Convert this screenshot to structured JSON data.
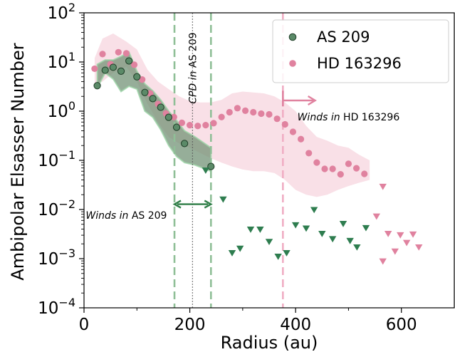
{
  "chart_data": {
    "type": "scatter",
    "xlabel": "Radius (au)",
    "ylabel": "Ambipolar Elsasser Number",
    "xlim": [
      0,
      700
    ],
    "ylim": [
      0.0001,
      100
    ],
    "yscale": "log",
    "x_ticks": [
      0,
      200,
      400,
      600
    ],
    "y_ticks": [
      {
        "value": 0.0001,
        "base": "10",
        "exp": "−4"
      },
      {
        "value": 0.001,
        "base": "10",
        "exp": "−3"
      },
      {
        "value": 0.01,
        "base": "10",
        "exp": "−2"
      },
      {
        "value": 0.1,
        "base": "10",
        "exp": "−1"
      },
      {
        "value": 1,
        "base": "10",
        "exp": "0"
      },
      {
        "value": 10,
        "base": "10",
        "exp": "1"
      },
      {
        "value": 100,
        "base": "10",
        "exp": "2"
      }
    ],
    "legend_position": "top-right",
    "series": [
      {
        "name": "AS 209",
        "color": "#5b8a68",
        "edge_color": "#1f3d27",
        "points": [
          [
            25,
            3.3
          ],
          [
            40,
            6.8
          ],
          [
            55,
            7.8
          ],
          [
            70,
            6.5
          ],
          [
            85,
            10.5
          ],
          [
            100,
            5.0
          ],
          [
            115,
            2.4
          ],
          [
            130,
            1.8
          ],
          [
            145,
            1.2
          ],
          [
            160,
            0.75
          ],
          [
            175,
            0.47
          ],
          [
            190,
            0.22
          ],
          [
            240,
            0.075
          ]
        ],
        "band": [
          [
            25,
            3.0,
            9.0
          ],
          [
            40,
            6.0,
            11.0
          ],
          [
            55,
            4.5,
            11.0
          ],
          [
            70,
            2.5,
            13.0
          ],
          [
            85,
            3.2,
            16.0
          ],
          [
            100,
            2.8,
            6.5
          ],
          [
            115,
            1.0,
            3.6
          ],
          [
            130,
            0.75,
            2.6
          ],
          [
            145,
            0.42,
            1.7
          ],
          [
            160,
            0.2,
            1.0
          ],
          [
            175,
            0.12,
            0.65
          ],
          [
            190,
            0.09,
            0.4
          ],
          [
            210,
            0.08,
            0.3
          ],
          [
            240,
            0.06,
            0.18
          ]
        ],
        "upper_limits": [
          [
            230,
            0.062
          ],
          [
            263,
            0.016
          ],
          [
            280,
            0.0013
          ],
          [
            295,
            0.0016
          ],
          [
            315,
            0.0039
          ],
          [
            333,
            0.0039
          ],
          [
            350,
            0.0022
          ],
          [
            367,
            0.0011
          ],
          [
            383,
            0.0013
          ],
          [
            400,
            0.0048
          ],
          [
            420,
            0.0041
          ],
          [
            435,
            0.0098
          ],
          [
            450,
            0.0032
          ],
          [
            470,
            0.0025
          ],
          [
            490,
            0.0051
          ],
          [
            503,
            0.0023
          ],
          [
            516,
            0.0017
          ],
          [
            533,
            0.0042
          ]
        ]
      },
      {
        "name": "HD 163296",
        "color": "#e0829f",
        "points": [
          [
            20,
            7.3
          ],
          [
            35,
            14.5
          ],
          [
            50,
            9.0
          ],
          [
            65,
            15.8
          ],
          [
            80,
            15.0
          ],
          [
            95,
            8.8
          ],
          [
            110,
            4.4
          ],
          [
            125,
            2.3
          ],
          [
            140,
            1.4
          ],
          [
            155,
            0.9
          ],
          [
            170,
            0.76
          ],
          [
            185,
            0.58
          ],
          [
            200,
            0.52
          ],
          [
            215,
            0.5
          ],
          [
            230,
            0.52
          ],
          [
            245,
            0.57
          ],
          [
            260,
            0.76
          ],
          [
            275,
            0.95
          ],
          [
            290,
            1.15
          ],
          [
            305,
            1.02
          ],
          [
            320,
            0.95
          ],
          [
            335,
            0.89
          ],
          [
            350,
            0.86
          ],
          [
            365,
            0.7
          ],
          [
            380,
            0.54
          ],
          [
            395,
            0.38
          ],
          [
            410,
            0.27
          ],
          [
            425,
            0.14
          ],
          [
            440,
            0.09
          ],
          [
            455,
            0.067
          ],
          [
            470,
            0.067
          ],
          [
            485,
            0.052
          ],
          [
            500,
            0.085
          ],
          [
            515,
            0.069
          ],
          [
            530,
            0.053
          ]
        ],
        "band": [
          [
            20,
            3.5,
            12.0
          ],
          [
            35,
            4.0,
            30.0
          ],
          [
            55,
            6.0,
            38.0
          ],
          [
            80,
            8.0,
            26.0
          ],
          [
            100,
            4.0,
            18.0
          ],
          [
            120,
            1.4,
            7.0
          ],
          [
            140,
            0.6,
            4.0
          ],
          [
            160,
            0.3,
            2.8
          ],
          [
            180,
            0.22,
            2.0
          ],
          [
            200,
            0.18,
            1.6
          ],
          [
            220,
            0.14,
            1.5
          ],
          [
            240,
            0.11,
            1.5
          ],
          [
            260,
            0.09,
            1.7
          ],
          [
            280,
            0.075,
            2.3
          ],
          [
            300,
            0.065,
            2.5
          ],
          [
            320,
            0.06,
            2.4
          ],
          [
            340,
            0.06,
            2.3
          ],
          [
            360,
            0.055,
            2.0
          ],
          [
            380,
            0.04,
            1.5
          ],
          [
            400,
            0.025,
            1.0
          ],
          [
            420,
            0.02,
            0.5
          ],
          [
            440,
            0.018,
            0.3
          ],
          [
            460,
            0.02,
            0.25
          ],
          [
            480,
            0.025,
            0.2
          ],
          [
            500,
            0.03,
            0.18
          ],
          [
            520,
            0.035,
            0.13
          ],
          [
            540,
            0.04,
            0.1
          ]
        ],
        "upper_limits": [
          [
            553,
            0.0072
          ],
          [
            565,
            0.00088
          ],
          [
            565,
            0.029
          ],
          [
            575,
            0.0032
          ],
          [
            588,
            0.0014
          ],
          [
            598,
            0.003
          ],
          [
            610,
            0.0021
          ],
          [
            622,
            0.0031
          ],
          [
            633,
            0.0017
          ]
        ]
      }
    ],
    "vertical_lines": [
      {
        "x": 171,
        "color": "#8fbf97",
        "style": "dashed"
      },
      {
        "x": 240,
        "color": "#8fbf97",
        "style": "dashed"
      },
      {
        "x": 205,
        "color": "#555555",
        "style": "dotted"
      },
      {
        "x": 376,
        "color": "#f0aec4",
        "style": "dashed"
      }
    ],
    "annotations": [
      {
        "id": "cpd",
        "text": "CPD in AS 209",
        "x": 205,
        "y": 40,
        "rotation": -90
      },
      {
        "id": "winds_as209",
        "text": "Winds in AS 209",
        "x": 80,
        "y": 0.0065
      },
      {
        "id": "winds_hd",
        "text": "Winds in HD 163296",
        "x": 500,
        "y": 0.65
      }
    ],
    "arrows": [
      {
        "id": "as209-arrow",
        "x_from": 171,
        "x_to": 240,
        "y": 0.0128,
        "color": "#2e7d46",
        "double": true
      },
      {
        "id": "hd-arrow",
        "x_from": 376,
        "x_to": 437,
        "y": 1.65,
        "color": "#e0829f",
        "start_tick_from": 1.25,
        "start_tick_to": 2.6
      }
    ]
  }
}
